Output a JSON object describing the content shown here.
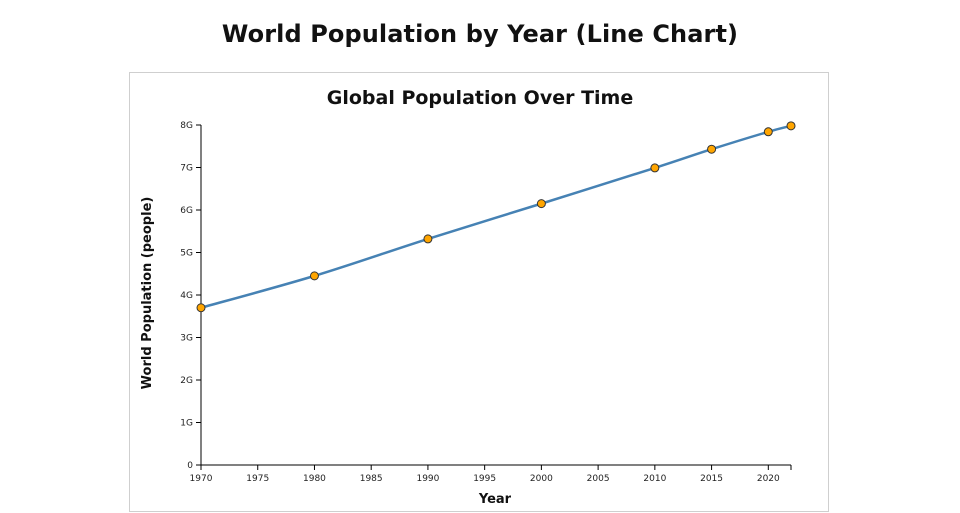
{
  "page": {
    "title": "World Population by Year (Line Chart)"
  },
  "chart_data": {
    "type": "line",
    "title": "Global Population Over Time",
    "xlabel": "Year",
    "ylabel": "World Population (people)",
    "xlim": [
      1970,
      2022
    ],
    "ylim": [
      0,
      8000000000
    ],
    "x_ticks": [
      1970,
      1975,
      1980,
      1985,
      1990,
      1995,
      2000,
      2005,
      2010,
      2015,
      2020
    ],
    "y_ticks": [
      0,
      1000000000,
      2000000000,
      3000000000,
      4000000000,
      5000000000,
      6000000000,
      7000000000,
      8000000000
    ],
    "y_tick_labels": [
      "0",
      "1G",
      "2G",
      "3G",
      "4G",
      "5G",
      "6G",
      "7G",
      "8G"
    ],
    "grid": false,
    "series": [
      {
        "x": [
          1970,
          1980,
          1990,
          2000,
          2010,
          2015,
          2020,
          2022
        ],
        "values": [
          3700000000,
          4450000000,
          5320000000,
          6150000000,
          6990000000,
          7430000000,
          7840000000,
          7980000000
        ]
      }
    ],
    "colors": {
      "line": "#4682b4",
      "marker_fill": "#ffa500",
      "marker_stroke": "#333333"
    }
  }
}
